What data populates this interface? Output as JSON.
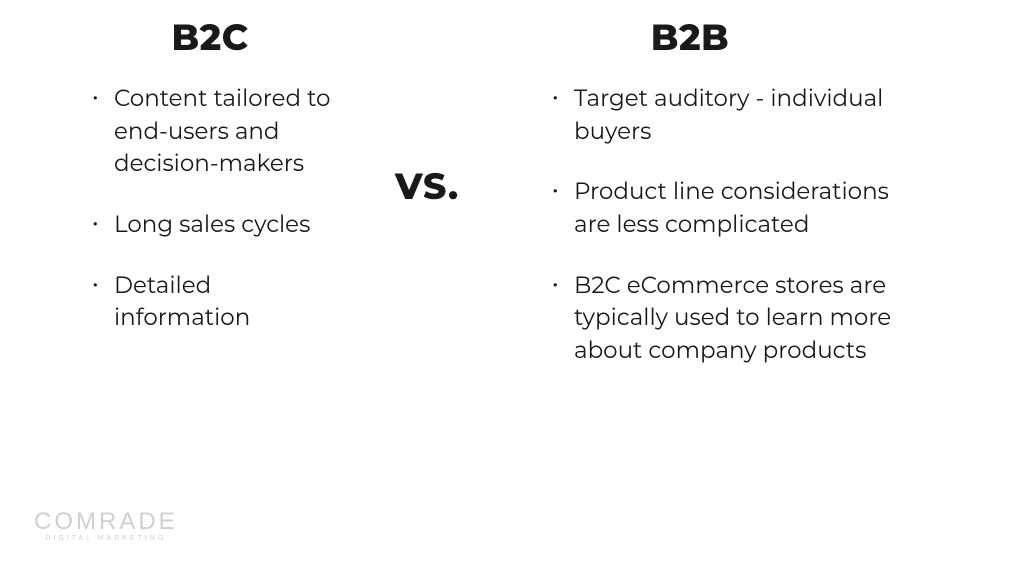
{
  "left": {
    "heading": "B2C",
    "items": [
      "Content tailored to end-users and decision-makers",
      "Long sales cycles",
      "Detailed information"
    ]
  },
  "right": {
    "heading": "B2B",
    "items": [
      "Target auditory - individual buyers",
      "Product line considerations are less complicated",
      "B2C eCommerce stores are typically used to learn more about company products"
    ]
  },
  "vs_label": "VS.",
  "brand": {
    "main": "COMRADE",
    "sub": "DIGITAL MARKETING"
  },
  "style": {
    "background_color": "#ffffff",
    "text_color": "#191919",
    "brand_color": "#d0d0d0",
    "heading_fontsize": 36,
    "body_fontsize": 23,
    "vs_fontsize": 36
  }
}
